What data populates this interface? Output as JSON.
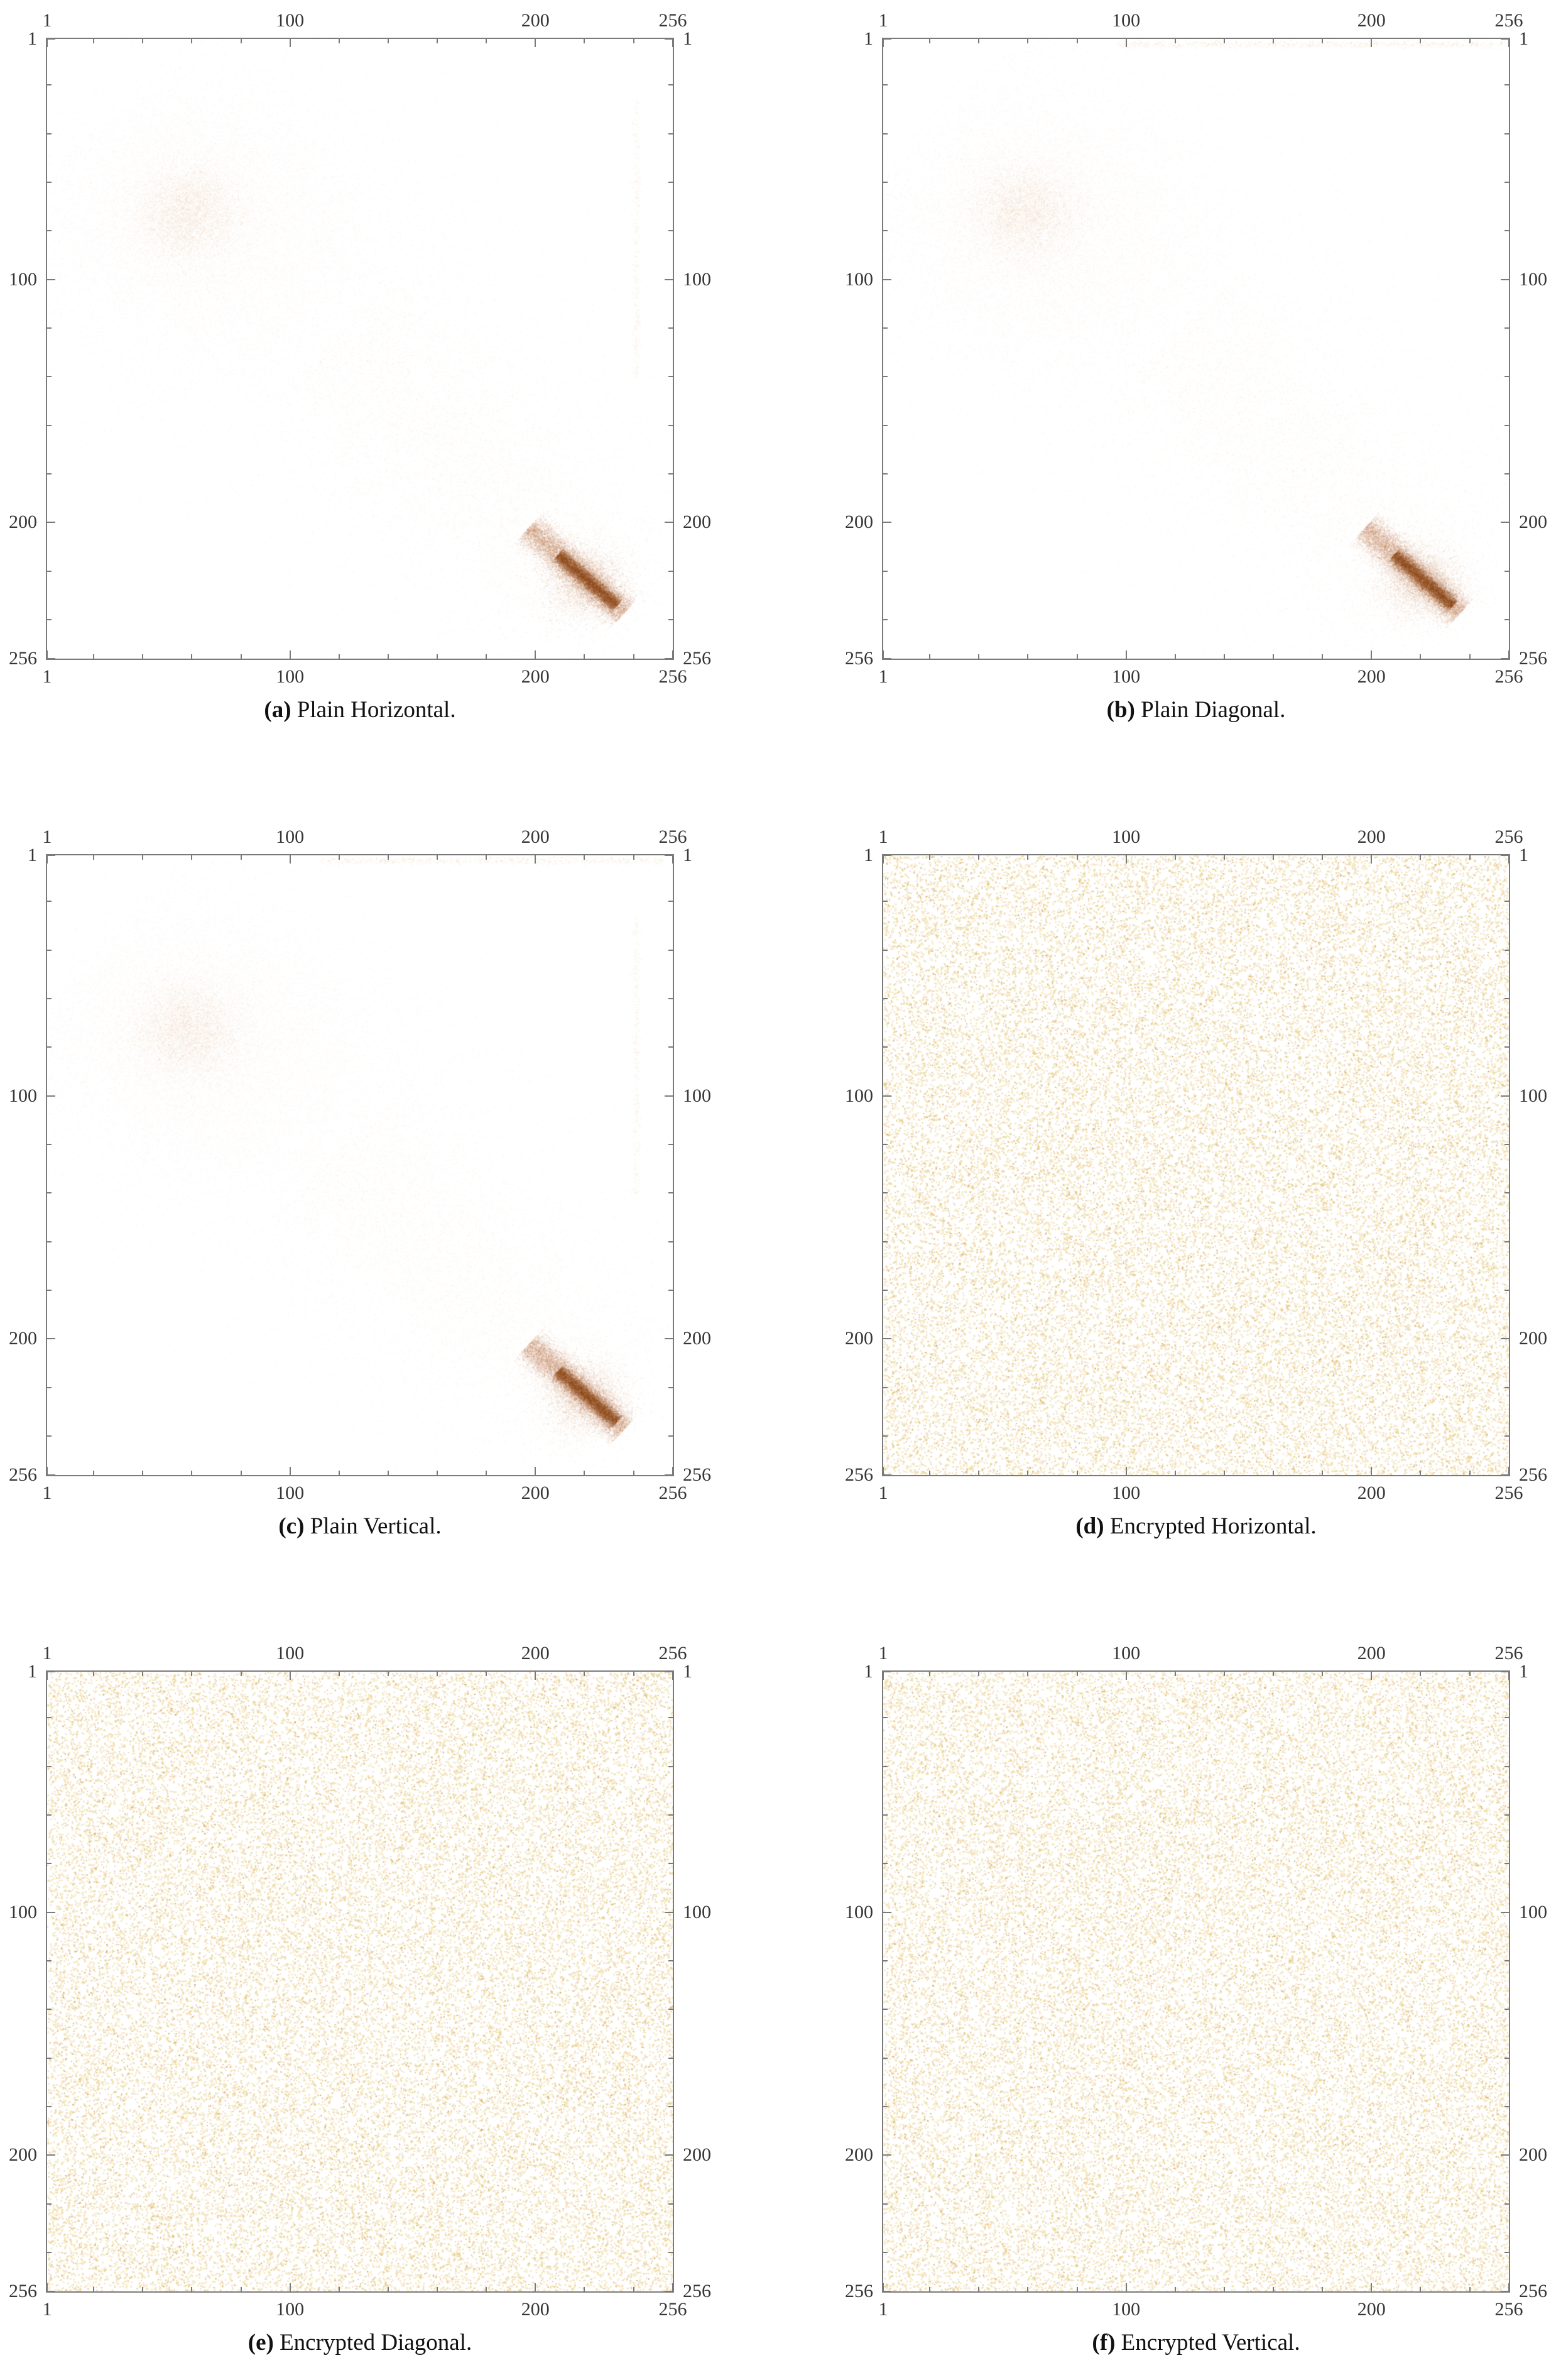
{
  "figure": {
    "tick_labels": [
      "1",
      "100",
      "200",
      "256"
    ],
    "tick_values": [
      1,
      100,
      200,
      256
    ],
    "minor_tick_values": [
      20,
      40,
      60,
      80,
      120,
      140,
      160,
      180,
      220,
      240
    ],
    "axis_range": [
      1,
      256
    ],
    "frame_color": "#7a7a7a",
    "subplots": [
      {
        "id": "a",
        "caption_label": "(a)",
        "caption_text": "Plain Horizontal.",
        "seed": 11
      },
      {
        "id": "b",
        "caption_label": "(b)",
        "caption_text": "Plain Diagonal.",
        "seed": 22
      },
      {
        "id": "c",
        "caption_label": "(c)",
        "caption_text": "Plain Vertical.",
        "seed": 33
      },
      {
        "id": "d",
        "caption_label": "(d)",
        "caption_text": "Encrypted Horizontal.",
        "seed": 44
      },
      {
        "id": "e",
        "caption_label": "(e)",
        "caption_text": "Encrypted Diagonal.",
        "seed": 55
      },
      {
        "id": "f",
        "caption_label": "(f)",
        "caption_text": "Encrypted Vertical.",
        "seed": 66
      }
    ]
  },
  "chart_data": [
    {
      "id": "a",
      "type": "scatter",
      "caption": "(a) Plain Horizontal.",
      "xlim": [
        1,
        256
      ],
      "ylim": [
        1,
        256
      ],
      "y_direction": "down",
      "x_ticks": [
        1,
        100,
        200,
        256
      ],
      "y_ticks": [
        1,
        100,
        200,
        256
      ],
      "grid": false,
      "legend": false,
      "description": "Adjacent-pixel correlation of plain image: dense haze centered near (60,75), broad correlated scatter along the main diagonal, and a dark dense streak near (210-235, 213-234); faint vertical dotted line near x=241 in upper region.",
      "layers": [
        {
          "kind": "gaussian",
          "cx": 62,
          "cy": 76,
          "sx": 34,
          "sy": 30,
          "n": 15000,
          "alpha": 0.022,
          "size": 2,
          "color": "#c98f1e"
        },
        {
          "kind": "gaussian",
          "cx": 58,
          "cy": 72,
          "sx": 12,
          "sy": 11,
          "n": 6500,
          "alpha": 0.04,
          "size": 2,
          "color": "#c07b12"
        },
        {
          "kind": "gaussian",
          "cx": 112,
          "cy": 92,
          "sx": 55,
          "sy": 34,
          "n": 3000,
          "alpha": 0.03,
          "size": 2,
          "color": "#d4a848"
        },
        {
          "kind": "gaussian",
          "cx": 150,
          "cy": 168,
          "sx": 55,
          "sy": 38,
          "n": 2500,
          "alpha": 0.03,
          "size": 2,
          "color": "#d4a848"
        },
        {
          "kind": "band",
          "x1": 26,
          "y1": 32,
          "x2": 243,
          "y2": 241,
          "spread": 50,
          "n": 8000,
          "alpha": 0.04,
          "size": 2,
          "color": "#cf9d38"
        },
        {
          "kind": "band",
          "x1": 118,
          "y1": 124,
          "x2": 226,
          "y2": 229,
          "spread": 20,
          "n": 3500,
          "alpha": 0.05,
          "size": 2,
          "color": "#cf9d38"
        },
        {
          "kind": "gaussian",
          "cx": 220,
          "cy": 224,
          "sx": 9,
          "sy": 8,
          "n": 4500,
          "alpha": 0.05,
          "size": 2,
          "color": "#b56a10"
        },
        {
          "kind": "band",
          "x1": 197,
          "y1": 202,
          "x2": 236,
          "y2": 237,
          "spread": 3.5,
          "n": 11000,
          "alpha": 0.07,
          "size": 2,
          "color": "#a35208"
        },
        {
          "kind": "band",
          "x1": 209,
          "y1": 213,
          "x2": 233,
          "y2": 234,
          "spread": 1.6,
          "n": 8000,
          "alpha": 0.1,
          "size": 2,
          "color": "#8e4200"
        },
        {
          "kind": "vline",
          "x": 241,
          "y1": 26,
          "y2": 140,
          "n": 450,
          "alpha": 0.06,
          "size": 2,
          "color": "#cf9d38"
        }
      ]
    },
    {
      "id": "b",
      "type": "scatter",
      "caption": "(b) Plain Diagonal.",
      "xlim": [
        1,
        256
      ],
      "ylim": [
        1,
        256
      ],
      "y_direction": "down",
      "x_ticks": [
        1,
        100,
        200,
        256
      ],
      "y_ticks": [
        1,
        100,
        200,
        256
      ],
      "grid": false,
      "legend": false,
      "description": "Adjacent-pixel correlation of plain image (diagonal pairs): same diagonal structure as (a) plus a faint dotted horizontal line at y≈1 spanning roughly x=96-254.",
      "layers": [
        {
          "kind": "gaussian",
          "cx": 62,
          "cy": 76,
          "sx": 34,
          "sy": 30,
          "n": 15000,
          "alpha": 0.022,
          "size": 2,
          "color": "#c98f1e"
        },
        {
          "kind": "gaussian",
          "cx": 58,
          "cy": 72,
          "sx": 12,
          "sy": 11,
          "n": 6500,
          "alpha": 0.04,
          "size": 2,
          "color": "#c07b12"
        },
        {
          "kind": "gaussian",
          "cx": 112,
          "cy": 92,
          "sx": 55,
          "sy": 34,
          "n": 3000,
          "alpha": 0.03,
          "size": 2,
          "color": "#d4a848"
        },
        {
          "kind": "gaussian",
          "cx": 150,
          "cy": 168,
          "sx": 55,
          "sy": 38,
          "n": 2500,
          "alpha": 0.03,
          "size": 2,
          "color": "#d4a848"
        },
        {
          "kind": "band",
          "x1": 26,
          "y1": 32,
          "x2": 243,
          "y2": 241,
          "spread": 52,
          "n": 8500,
          "alpha": 0.04,
          "size": 2,
          "color": "#cf9d38"
        },
        {
          "kind": "band",
          "x1": 118,
          "y1": 124,
          "x2": 226,
          "y2": 229,
          "spread": 20,
          "n": 3500,
          "alpha": 0.05,
          "size": 2,
          "color": "#cf9d38"
        },
        {
          "kind": "gaussian",
          "cx": 220,
          "cy": 224,
          "sx": 9,
          "sy": 8,
          "n": 4500,
          "alpha": 0.05,
          "size": 2,
          "color": "#b56a10"
        },
        {
          "kind": "band",
          "x1": 197,
          "y1": 202,
          "x2": 236,
          "y2": 237,
          "spread": 3.5,
          "n": 11000,
          "alpha": 0.07,
          "size": 2,
          "color": "#a35208"
        },
        {
          "kind": "band",
          "x1": 209,
          "y1": 213,
          "x2": 233,
          "y2": 234,
          "spread": 1.6,
          "n": 8000,
          "alpha": 0.1,
          "size": 2,
          "color": "#8e4200"
        },
        {
          "kind": "hline",
          "y": 3,
          "x1": 96,
          "x2": 254,
          "n": 800,
          "alpha": 0.08,
          "size": 2,
          "color": "#cf9d38"
        }
      ]
    },
    {
      "id": "c",
      "type": "scatter",
      "caption": "(c) Plain Vertical.",
      "xlim": [
        1,
        256
      ],
      "ylim": [
        1,
        256
      ],
      "y_direction": "down",
      "x_ticks": [
        1,
        100,
        200,
        256
      ],
      "y_ticks": [
        1,
        100,
        200,
        256
      ],
      "grid": false,
      "legend": false,
      "description": "Adjacent-pixel correlation of plain image (vertical pairs): diagonal structure as (a), plus faint dotted horizontal line at y≈1 (x≈112-252) and faint vertical dotted line near x=241 in upper region.",
      "layers": [
        {
          "kind": "gaussian",
          "cx": 62,
          "cy": 76,
          "sx": 34,
          "sy": 30,
          "n": 15000,
          "alpha": 0.022,
          "size": 2,
          "color": "#c98f1e"
        },
        {
          "kind": "gaussian",
          "cx": 58,
          "cy": 72,
          "sx": 12,
          "sy": 11,
          "n": 6500,
          "alpha": 0.04,
          "size": 2,
          "color": "#c07b12"
        },
        {
          "kind": "gaussian",
          "cx": 112,
          "cy": 92,
          "sx": 55,
          "sy": 34,
          "n": 3000,
          "alpha": 0.03,
          "size": 2,
          "color": "#d4a848"
        },
        {
          "kind": "gaussian",
          "cx": 150,
          "cy": 168,
          "sx": 55,
          "sy": 38,
          "n": 2500,
          "alpha": 0.03,
          "size": 2,
          "color": "#d4a848"
        },
        {
          "kind": "band",
          "x1": 26,
          "y1": 32,
          "x2": 243,
          "y2": 241,
          "spread": 50,
          "n": 8000,
          "alpha": 0.04,
          "size": 2,
          "color": "#cf9d38"
        },
        {
          "kind": "band",
          "x1": 118,
          "y1": 124,
          "x2": 226,
          "y2": 229,
          "spread": 20,
          "n": 3500,
          "alpha": 0.05,
          "size": 2,
          "color": "#cf9d38"
        },
        {
          "kind": "gaussian",
          "cx": 220,
          "cy": 224,
          "sx": 9,
          "sy": 8,
          "n": 4500,
          "alpha": 0.05,
          "size": 2,
          "color": "#b56a10"
        },
        {
          "kind": "band",
          "x1": 197,
          "y1": 202,
          "x2": 236,
          "y2": 237,
          "spread": 3.5,
          "n": 11000,
          "alpha": 0.07,
          "size": 2,
          "color": "#a35208"
        },
        {
          "kind": "band",
          "x1": 209,
          "y1": 213,
          "x2": 233,
          "y2": 234,
          "spread": 1.6,
          "n": 8000,
          "alpha": 0.1,
          "size": 2,
          "color": "#8e4200"
        },
        {
          "kind": "hline",
          "y": 3,
          "x1": 112,
          "x2": 252,
          "n": 650,
          "alpha": 0.08,
          "size": 2,
          "color": "#cf9d38"
        },
        {
          "kind": "vline",
          "x": 241,
          "y1": 26,
          "y2": 140,
          "n": 450,
          "alpha": 0.06,
          "size": 2,
          "color": "#cf9d38"
        }
      ]
    },
    {
      "id": "d",
      "type": "scatter",
      "caption": "(d) Encrypted Horizontal.",
      "xlim": [
        1,
        256
      ],
      "ylim": [
        1,
        256
      ],
      "y_direction": "down",
      "x_ticks": [
        1,
        100,
        200,
        256
      ],
      "y_ticks": [
        1,
        100,
        200,
        256
      ],
      "grid": false,
      "legend": false,
      "description": "Adjacent-pixel correlation of encrypted image: uniformly distributed speckle covering the entire 1-256 square with no visible correlation structure.",
      "layers": [
        {
          "kind": "uniform",
          "n": 26000,
          "alpha": 0.3,
          "size": 3,
          "color": "#e0bb4e"
        },
        {
          "kind": "uniform",
          "n": 12000,
          "alpha": 0.36,
          "size": 2,
          "color": "#cc9628"
        },
        {
          "kind": "uniform",
          "n": 4500,
          "alpha": 0.42,
          "size": 2,
          "color": "#b3751c"
        }
      ]
    },
    {
      "id": "e",
      "type": "scatter",
      "caption": "(e) Encrypted Diagonal.",
      "xlim": [
        1,
        256
      ],
      "ylim": [
        1,
        256
      ],
      "y_direction": "down",
      "x_ticks": [
        1,
        100,
        200,
        256
      ],
      "y_ticks": [
        1,
        100,
        200,
        256
      ],
      "grid": false,
      "legend": false,
      "description": "Adjacent-pixel correlation of encrypted image (diagonal pairs): uniform random speckle over the full square.",
      "layers": [
        {
          "kind": "uniform",
          "n": 26000,
          "alpha": 0.3,
          "size": 3,
          "color": "#e0bb4e"
        },
        {
          "kind": "uniform",
          "n": 12000,
          "alpha": 0.36,
          "size": 2,
          "color": "#cc9628"
        },
        {
          "kind": "uniform",
          "n": 4500,
          "alpha": 0.42,
          "size": 2,
          "color": "#b3751c"
        }
      ]
    },
    {
      "id": "f",
      "type": "scatter",
      "caption": "(f) Encrypted Vertical.",
      "xlim": [
        1,
        256
      ],
      "ylim": [
        1,
        256
      ],
      "y_direction": "down",
      "x_ticks": [
        1,
        100,
        200,
        256
      ],
      "y_ticks": [
        1,
        100,
        200,
        256
      ],
      "grid": false,
      "legend": false,
      "description": "Adjacent-pixel correlation of encrypted image (vertical pairs): uniform random speckle over the full square.",
      "layers": [
        {
          "kind": "uniform",
          "n": 26000,
          "alpha": 0.3,
          "size": 3,
          "color": "#e0bb4e"
        },
        {
          "kind": "uniform",
          "n": 12000,
          "alpha": 0.36,
          "size": 2,
          "color": "#cc9628"
        },
        {
          "kind": "uniform",
          "n": 4500,
          "alpha": 0.42,
          "size": 2,
          "color": "#b3751c"
        }
      ]
    }
  ]
}
